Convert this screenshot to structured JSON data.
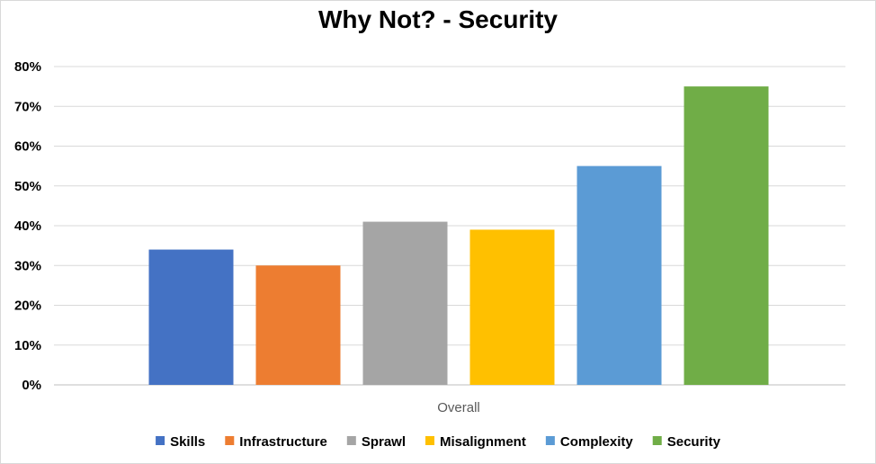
{
  "chart_data": {
    "type": "bar",
    "title": "Why Not? - Security",
    "categories": [
      "Overall"
    ],
    "series": [
      {
        "name": "Skills",
        "values": [
          0.34
        ],
        "color": "#4472C4"
      },
      {
        "name": "Infrastructure",
        "values": [
          0.3
        ],
        "color": "#ED7D31"
      },
      {
        "name": "Sprawl",
        "values": [
          0.41
        ],
        "color": "#A5A5A5"
      },
      {
        "name": "Misalignment",
        "values": [
          0.39
        ],
        "color": "#FFC000"
      },
      {
        "name": "Complexity",
        "values": [
          0.55
        ],
        "color": "#5B9BD5"
      },
      {
        "name": "Security",
        "values": [
          0.75
        ],
        "color": "#70AD47"
      }
    ],
    "ylim": [
      0,
      0.8
    ],
    "yticks": [
      0,
      0.1,
      0.2,
      0.3,
      0.4,
      0.5,
      0.6,
      0.7,
      0.8
    ],
    "ytick_labels": [
      "0%",
      "10%",
      "20%",
      "30%",
      "40%",
      "50%",
      "60%",
      "70%",
      "80%"
    ],
    "grid": true,
    "legend": "bottom"
  }
}
